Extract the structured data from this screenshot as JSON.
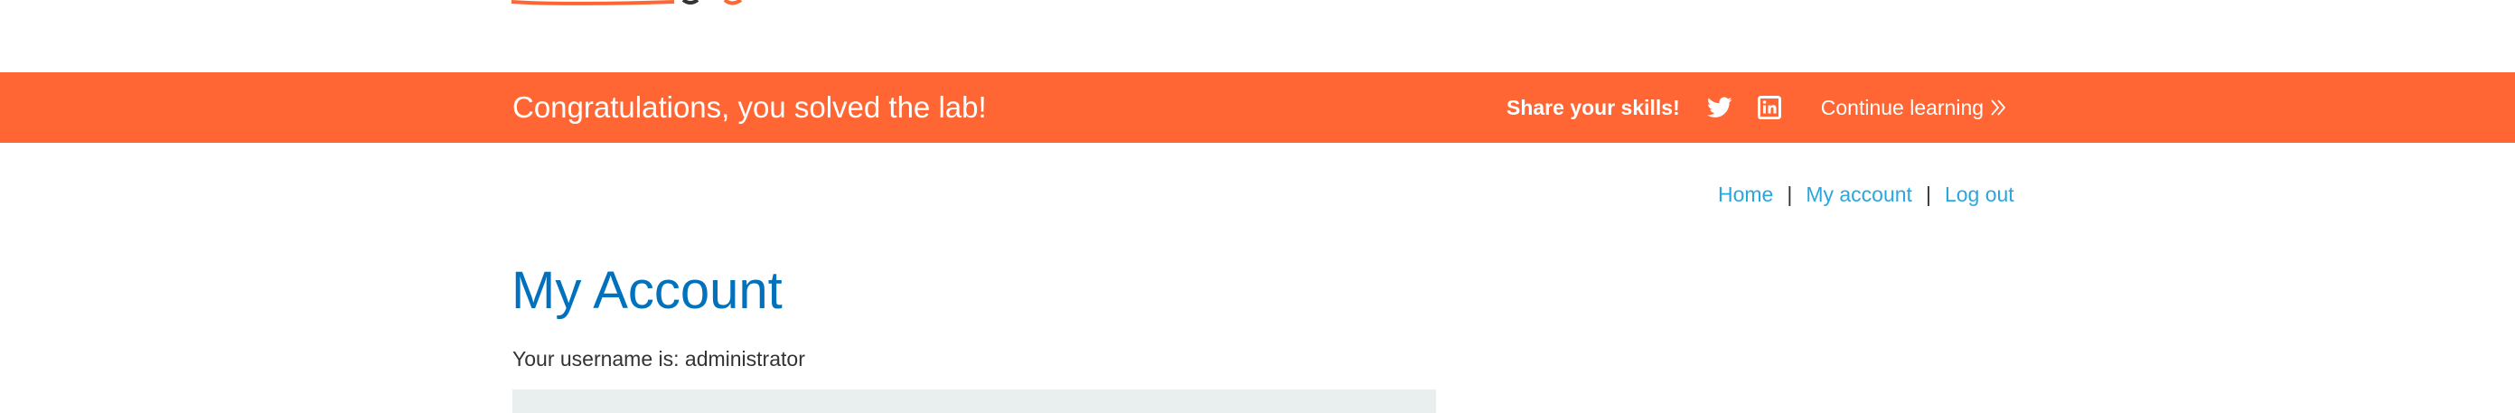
{
  "banner": {
    "message": "Congratulations, you solved the lab!",
    "share_label": "Share your skills!",
    "social_icons": [
      "twitter-icon",
      "linkedin-icon"
    ],
    "continue_label": "Continue learning",
    "continue_icon": "double-chevron-right-icon",
    "background_color": "#ff6633",
    "text_color": "#ffffff"
  },
  "nav": {
    "items": [
      {
        "label": "Home"
      },
      {
        "label": "My account"
      },
      {
        "label": "Log out"
      }
    ],
    "separator": "|",
    "link_color": "#29a7de"
  },
  "main": {
    "title": "My Account",
    "username_text": "Your username is: administrator",
    "title_color": "#0071bc"
  }
}
